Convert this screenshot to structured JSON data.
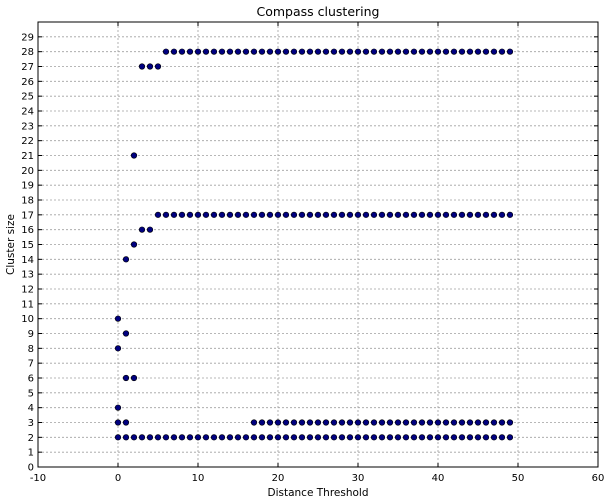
{
  "chart_data": {
    "type": "scatter",
    "title": "Compass clustering",
    "xlabel": "Distance Threshold",
    "ylabel": "Cluster size",
    "xlim": [
      -10,
      60
    ],
    "ylim": [
      0,
      30
    ],
    "xticks": [
      -10,
      0,
      10,
      20,
      30,
      40,
      50,
      60
    ],
    "yticks": [
      0,
      1,
      2,
      3,
      4,
      5,
      6,
      7,
      8,
      9,
      10,
      11,
      12,
      13,
      14,
      15,
      16,
      17,
      18,
      19,
      20,
      21,
      22,
      23,
      24,
      25,
      26,
      27,
      28,
      29
    ],
    "grid": true,
    "marker_color": "#00007f",
    "point_groups": [
      {
        "y": 2,
        "x_from": 0,
        "x_to": 49
      },
      {
        "y": 3,
        "x_from": 0,
        "x_to": 1
      },
      {
        "y": 3,
        "x_from": 17,
        "x_to": 49
      },
      {
        "y": 4,
        "x_from": 0,
        "x_to": 0
      },
      {
        "y": 6,
        "x_from": 1,
        "x_to": 2
      },
      {
        "y": 8,
        "x_from": 0,
        "x_to": 0
      },
      {
        "y": 9,
        "x_from": 1,
        "x_to": 1
      },
      {
        "y": 10,
        "x_from": 0,
        "x_to": 0
      },
      {
        "y": 14,
        "x_from": 1,
        "x_to": 1
      },
      {
        "y": 15,
        "x_from": 2,
        "x_to": 2
      },
      {
        "y": 16,
        "x_from": 3,
        "x_to": 4
      },
      {
        "y": 17,
        "x_from": 5,
        "x_to": 49
      },
      {
        "y": 21,
        "x_from": 2,
        "x_to": 2
      },
      {
        "y": 27,
        "x_from": 3,
        "x_to": 5
      },
      {
        "y": 28,
        "x_from": 6,
        "x_to": 49
      }
    ]
  }
}
